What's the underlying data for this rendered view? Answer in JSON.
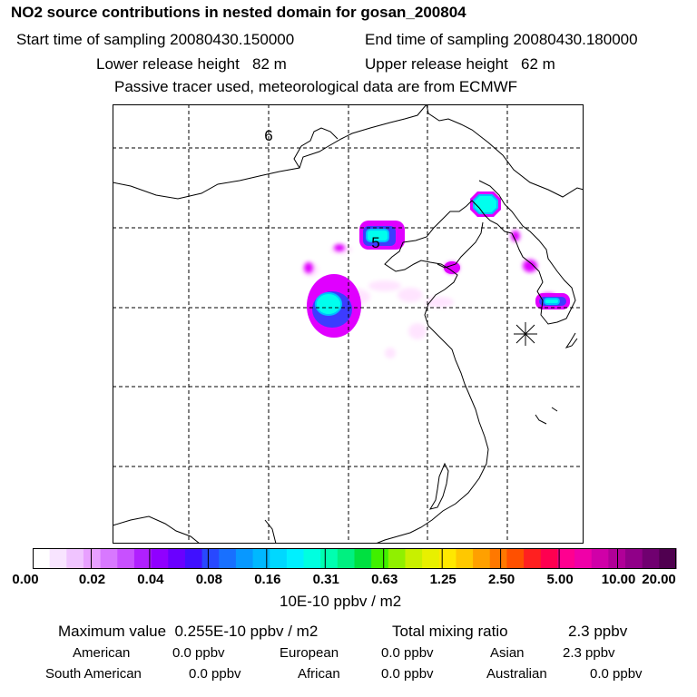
{
  "header": {
    "title": "NO2 source contributions in nested domain for gosan_200804",
    "start_sampling": "Start time of sampling 20080430.150000",
    "end_sampling": "End time of sampling 20080430.180000",
    "lower_release": "Lower release height   82 m",
    "upper_release": "Upper release height   62 m",
    "tracer_note": "Passive tracer used, meteorological data are from ECMWF"
  },
  "map": {
    "grid_labels": [
      "6",
      "5"
    ],
    "receptor": "Gosan station marker",
    "plume_colors": [
      "#ffe0ff",
      "#e000ff",
      "#3c3cff",
      "#00c0ff",
      "#00ffee"
    ]
  },
  "colorbar": {
    "colors": [
      "#ffffff",
      "#f8e4ff",
      "#f0c4ff",
      "#e8a0ff",
      "#d878ff",
      "#c850ff",
      "#b020ff",
      "#9000ff",
      "#6a00ff",
      "#4010ff",
      "#2848ff",
      "#1870ff",
      "#0898ff",
      "#00b8ff",
      "#00d8ff",
      "#00f0ff",
      "#00ffe0",
      "#00ffb0",
      "#00f080",
      "#00e040",
      "#40f000",
      "#90f000",
      "#c8f000",
      "#e8f000",
      "#ffe800",
      "#ffc800",
      "#ffa000",
      "#ff7800",
      "#ff5000",
      "#ff2020",
      "#ff0050",
      "#ff0090",
      "#f000a8",
      "#d000a8",
      "#b00098",
      "#900088",
      "#700070",
      "#500050"
    ],
    "ticks": [
      "0.00",
      "0.02",
      "0.04",
      "0.08",
      "0.16",
      "0.31",
      "0.63",
      "1.25",
      "2.50",
      "5.00",
      "10.00",
      "20.00"
    ],
    "unit": "10E-10 ppbv / m2"
  },
  "summary": {
    "max_value": "Maximum value  0.255E-10 ppbv / m2",
    "total_mixing_label": "Total mixing ratio",
    "total_mixing_value": "2.3 ppbv",
    "regions": [
      {
        "name": "American",
        "value": "0.0 ppbv"
      },
      {
        "name": "European",
        "value": "0.0 ppbv"
      },
      {
        "name": "Asian",
        "value": "2.3 ppbv"
      },
      {
        "name": "South American",
        "value": "0.0 ppbv"
      },
      {
        "name": "African",
        "value": "0.0 ppbv"
      },
      {
        "name": "Australian",
        "value": "0.0 ppbv"
      }
    ]
  }
}
